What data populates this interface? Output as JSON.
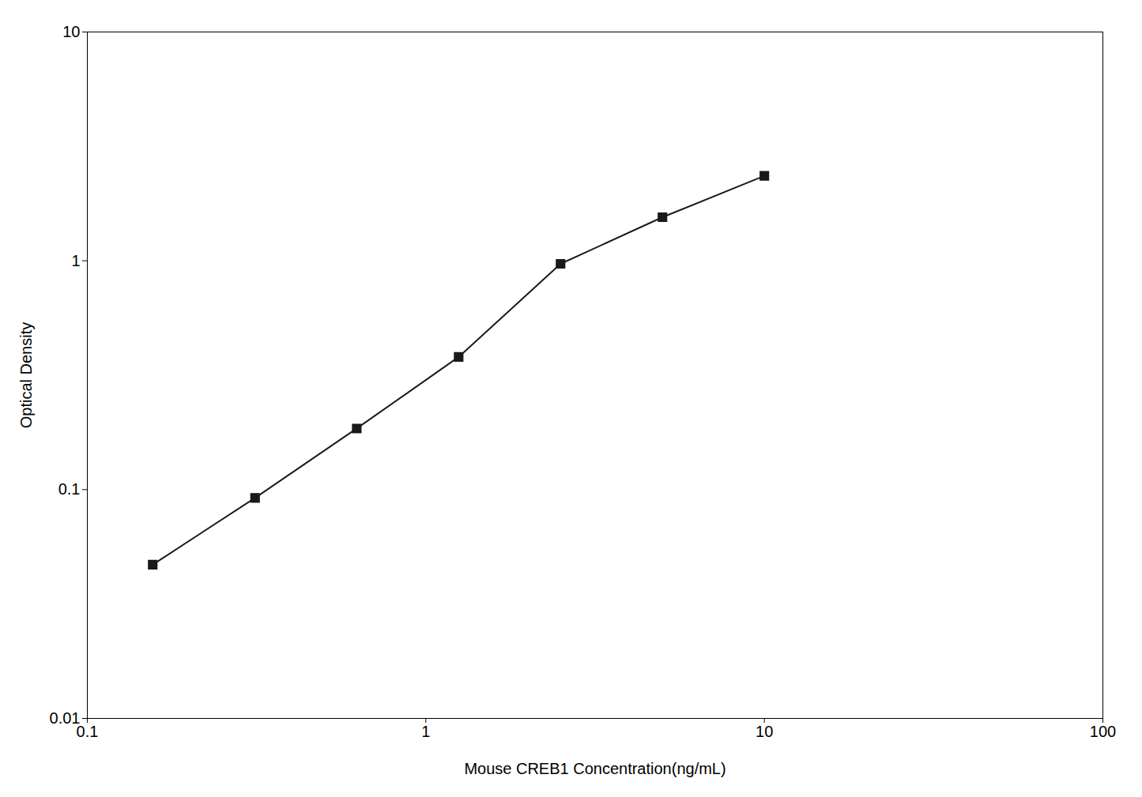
{
  "chart_data": {
    "type": "line",
    "xlabel": "Mouse CREB1 Concentration(ng/mL)",
    "ylabel": "Optical Density",
    "x": [
      0.156,
      0.313,
      0.625,
      1.25,
      2.5,
      5.0,
      10.0
    ],
    "values": [
      0.047,
      0.092,
      0.185,
      0.38,
      0.97,
      1.55,
      2.35
    ],
    "color": "#1a1a1a",
    "marker": "square",
    "log": true,
    "grid": false,
    "xlim": [
      0.1,
      100
    ],
    "ylim": [
      0.01,
      10
    ],
    "xticks": [
      0.1,
      1,
      10,
      100
    ],
    "yticks": [
      0.01,
      0.1,
      1,
      10
    ]
  }
}
